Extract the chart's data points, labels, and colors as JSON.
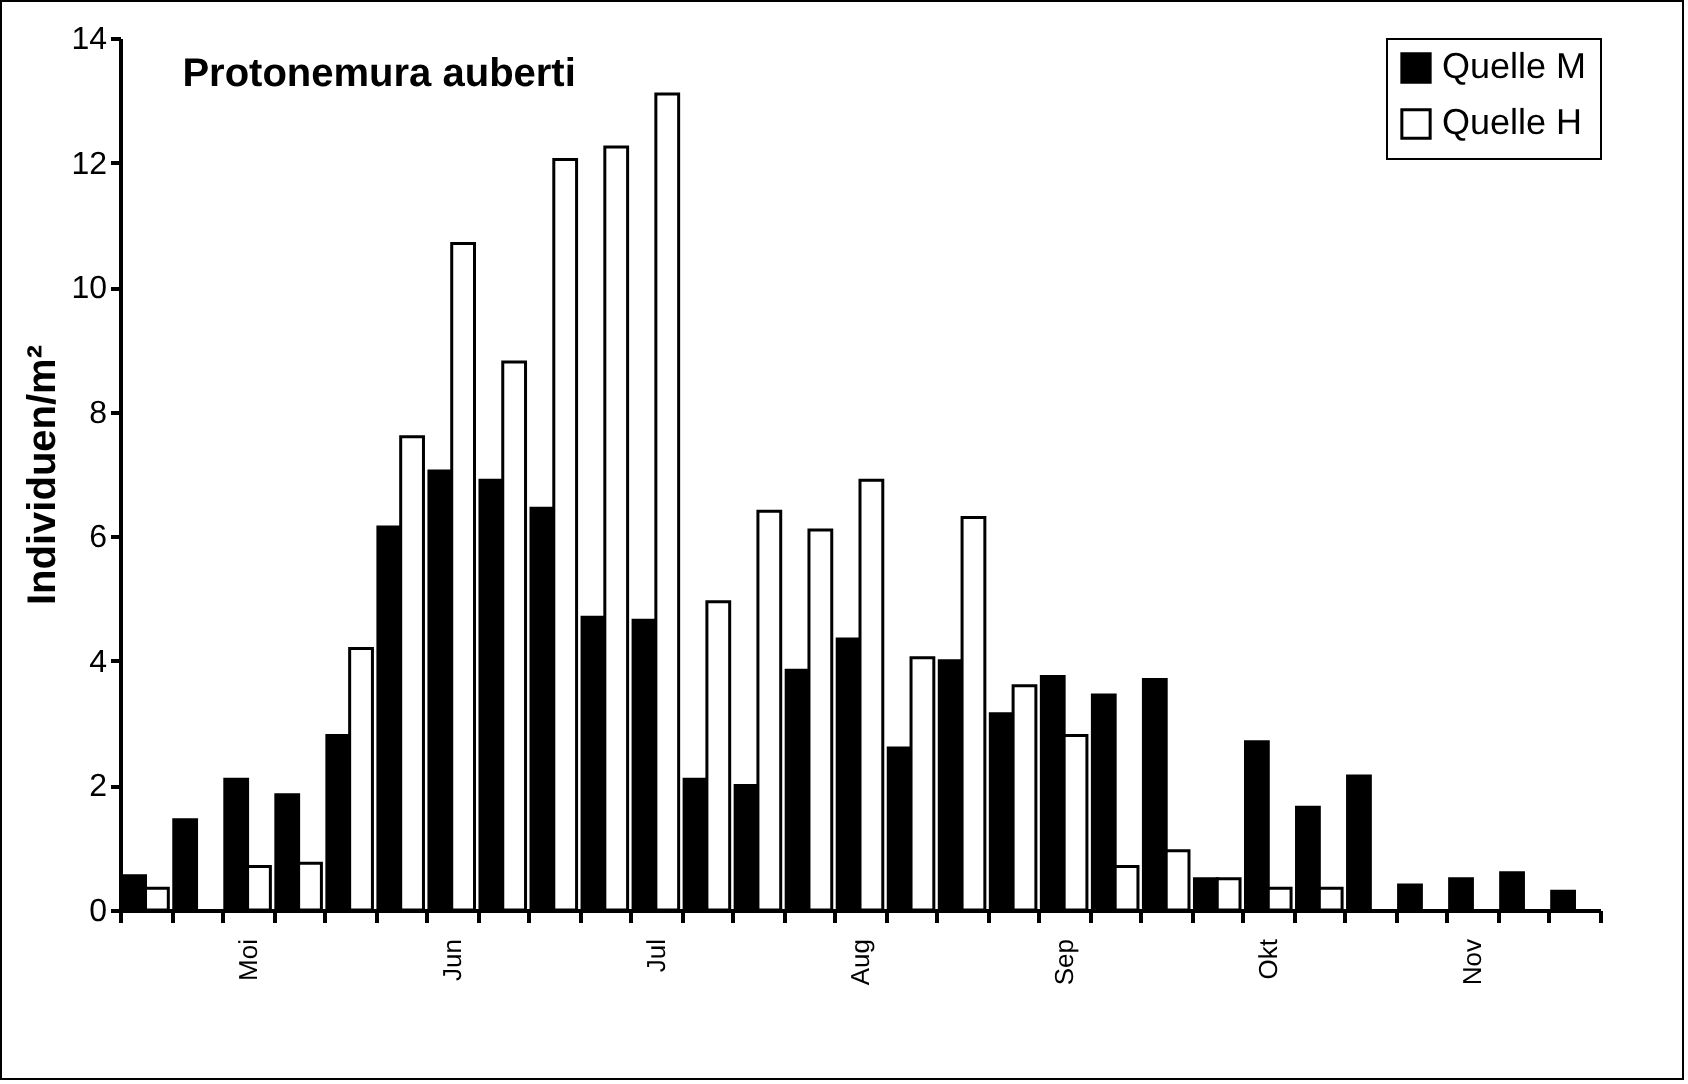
{
  "chart_data": {
    "type": "bar",
    "title": "Protonemura auberti",
    "ylabel": "Individuen/m²",
    "categories": [
      null,
      null,
      "Moi",
      null,
      null,
      null,
      "Jun",
      null,
      null,
      null,
      "Jul",
      null,
      null,
      null,
      "Aug",
      null,
      null,
      null,
      "Sep",
      null,
      null,
      null,
      "Okt",
      null,
      null,
      null,
      "Nov",
      null,
      null
    ],
    "series": [
      {
        "name": "Quelle M",
        "color": "#000000",
        "values": [
          0.55,
          1.45,
          2.1,
          1.85,
          2.8,
          6.15,
          7.05,
          6.9,
          6.45,
          4.7,
          4.65,
          2.1,
          2.0,
          3.85,
          4.35,
          2.6,
          4.0,
          3.15,
          3.75,
          3.45,
          3.7,
          0.5,
          2.7,
          1.65,
          2.15,
          0.4,
          0.5,
          0.6,
          0.3
        ]
      },
      {
        "name": "Quelle H",
        "color": "#ffffff",
        "values": [
          0.35,
          null,
          0.7,
          0.75,
          4.2,
          7.6,
          10.7,
          8.8,
          12.05,
          12.25,
          13.1,
          4.95,
          6.4,
          6.1,
          6.9,
          4.05,
          6.3,
          3.6,
          2.8,
          0.7,
          0.95,
          0.5,
          0.35,
          0.35,
          null,
          null,
          null,
          null,
          null
        ]
      }
    ],
    "ylim": [
      0,
      14
    ],
    "yticks": [
      0,
      2,
      4,
      6,
      8,
      10,
      12,
      14
    ],
    "grid": false,
    "legend": "top right"
  }
}
